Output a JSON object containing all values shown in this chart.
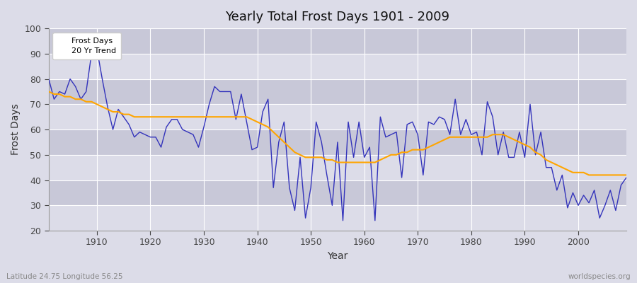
{
  "title": "Yearly Total Frost Days 1901 - 2009",
  "xlabel": "Year",
  "ylabel": "Frost Days",
  "bg_color": "#dcdce8",
  "plot_bg_color": "#dcdce8",
  "band_color1": "#dcdce8",
  "band_color2": "#c8c8d8",
  "grid_color": "#ffffff",
  "frost_color": "#3333bb",
  "trend_color": "#ffa500",
  "subtitle_left": "Latitude 24.75 Longitude 56.25",
  "subtitle_right": "worldspecies.org",
  "ylim": [
    20,
    100
  ],
  "xlim": [
    1901,
    2009
  ],
  "years": [
    1901,
    1902,
    1903,
    1904,
    1905,
    1906,
    1907,
    1908,
    1909,
    1910,
    1911,
    1912,
    1913,
    1914,
    1915,
    1916,
    1917,
    1918,
    1919,
    1920,
    1921,
    1922,
    1923,
    1924,
    1925,
    1926,
    1927,
    1928,
    1929,
    1930,
    1931,
    1932,
    1933,
    1934,
    1935,
    1936,
    1937,
    1938,
    1939,
    1940,
    1941,
    1942,
    1943,
    1944,
    1945,
    1946,
    1947,
    1948,
    1949,
    1950,
    1951,
    1952,
    1953,
    1954,
    1955,
    1956,
    1957,
    1958,
    1959,
    1960,
    1961,
    1962,
    1963,
    1964,
    1965,
    1966,
    1967,
    1968,
    1969,
    1970,
    1971,
    1972,
    1973,
    1974,
    1975,
    1976,
    1977,
    1978,
    1979,
    1980,
    1981,
    1982,
    1983,
    1984,
    1985,
    1986,
    1987,
    1988,
    1989,
    1990,
    1991,
    1992,
    1993,
    1994,
    1995,
    1996,
    1997,
    1998,
    1999,
    2000,
    2001,
    2002,
    2003,
    2004,
    2005,
    2006,
    2007,
    2008,
    2009
  ],
  "frost_days": [
    80,
    72,
    75,
    74,
    80,
    77,
    72,
    75,
    90,
    92,
    80,
    69,
    60,
    68,
    65,
    62,
    57,
    59,
    58,
    57,
    57,
    53,
    61,
    64,
    64,
    60,
    59,
    58,
    53,
    61,
    70,
    77,
    75,
    75,
    75,
    64,
    74,
    63,
    52,
    53,
    67,
    72,
    37,
    55,
    63,
    37,
    28,
    49,
    25,
    37,
    63,
    55,
    42,
    30,
    55,
    24,
    63,
    49,
    63,
    49,
    53,
    24,
    65,
    57,
    58,
    59,
    41,
    62,
    63,
    58,
    42,
    63,
    62,
    65,
    64,
    58,
    72,
    58,
    64,
    58,
    59,
    50,
    71,
    65,
    50,
    59,
    49,
    49,
    59,
    49,
    70,
    50,
    59,
    45,
    45,
    36,
    42,
    29,
    35,
    30,
    34,
    31,
    36,
    25,
    30,
    36,
    28,
    38,
    41
  ],
  "trend_years": [
    1901,
    1902,
    1903,
    1904,
    1905,
    1906,
    1907,
    1908,
    1909,
    1910,
    1911,
    1912,
    1913,
    1914,
    1915,
    1916,
    1917,
    1918,
    1919,
    1920,
    1921,
    1922,
    1923,
    1924,
    1925,
    1926,
    1927,
    1928,
    1929,
    1930,
    1931,
    1932,
    1933,
    1934,
    1935,
    1936,
    1937,
    1938,
    1939,
    1940,
    1941,
    1942,
    1943,
    1944,
    1945,
    1946,
    1947,
    1948,
    1949,
    1950,
    1951,
    1952,
    1953,
    1954,
    1955,
    1956,
    1957,
    1958,
    1959,
    1960,
    1961,
    1962,
    1963,
    1964,
    1965,
    1966,
    1967,
    1968,
    1969,
    1970,
    1971,
    1972,
    1973,
    1974,
    1975,
    1976,
    1977,
    1978,
    1979,
    1980,
    1981,
    1982,
    1983,
    1984,
    1985,
    1986,
    1987,
    1988,
    1989,
    1990,
    1991,
    1992,
    1993,
    1994,
    1995,
    1996,
    1997,
    1998,
    1999,
    2000,
    2001,
    2002,
    2003,
    2004,
    2005,
    2006,
    2007,
    2008,
    2009
  ],
  "trend_values": [
    75,
    74,
    74,
    73,
    73,
    72,
    72,
    71,
    71,
    70,
    69,
    68,
    67,
    67,
    66,
    66,
    65,
    65,
    65,
    65,
    65,
    65,
    65,
    65,
    65,
    65,
    65,
    65,
    65,
    65,
    65,
    65,
    65,
    65,
    65,
    65,
    65,
    65,
    64,
    63,
    62,
    61,
    59,
    57,
    55,
    53,
    51,
    50,
    49,
    49,
    49,
    49,
    48,
    48,
    47,
    47,
    47,
    47,
    47,
    47,
    47,
    47,
    48,
    49,
    50,
    50,
    51,
    51,
    52,
    52,
    52,
    53,
    54,
    55,
    56,
    57,
    57,
    57,
    57,
    57,
    57,
    57,
    57,
    58,
    58,
    58,
    57,
    56,
    55,
    54,
    53,
    51,
    50,
    48,
    47,
    46,
    45,
    44,
    43,
    43,
    43,
    42,
    42,
    42,
    42,
    42,
    42,
    42,
    42
  ]
}
